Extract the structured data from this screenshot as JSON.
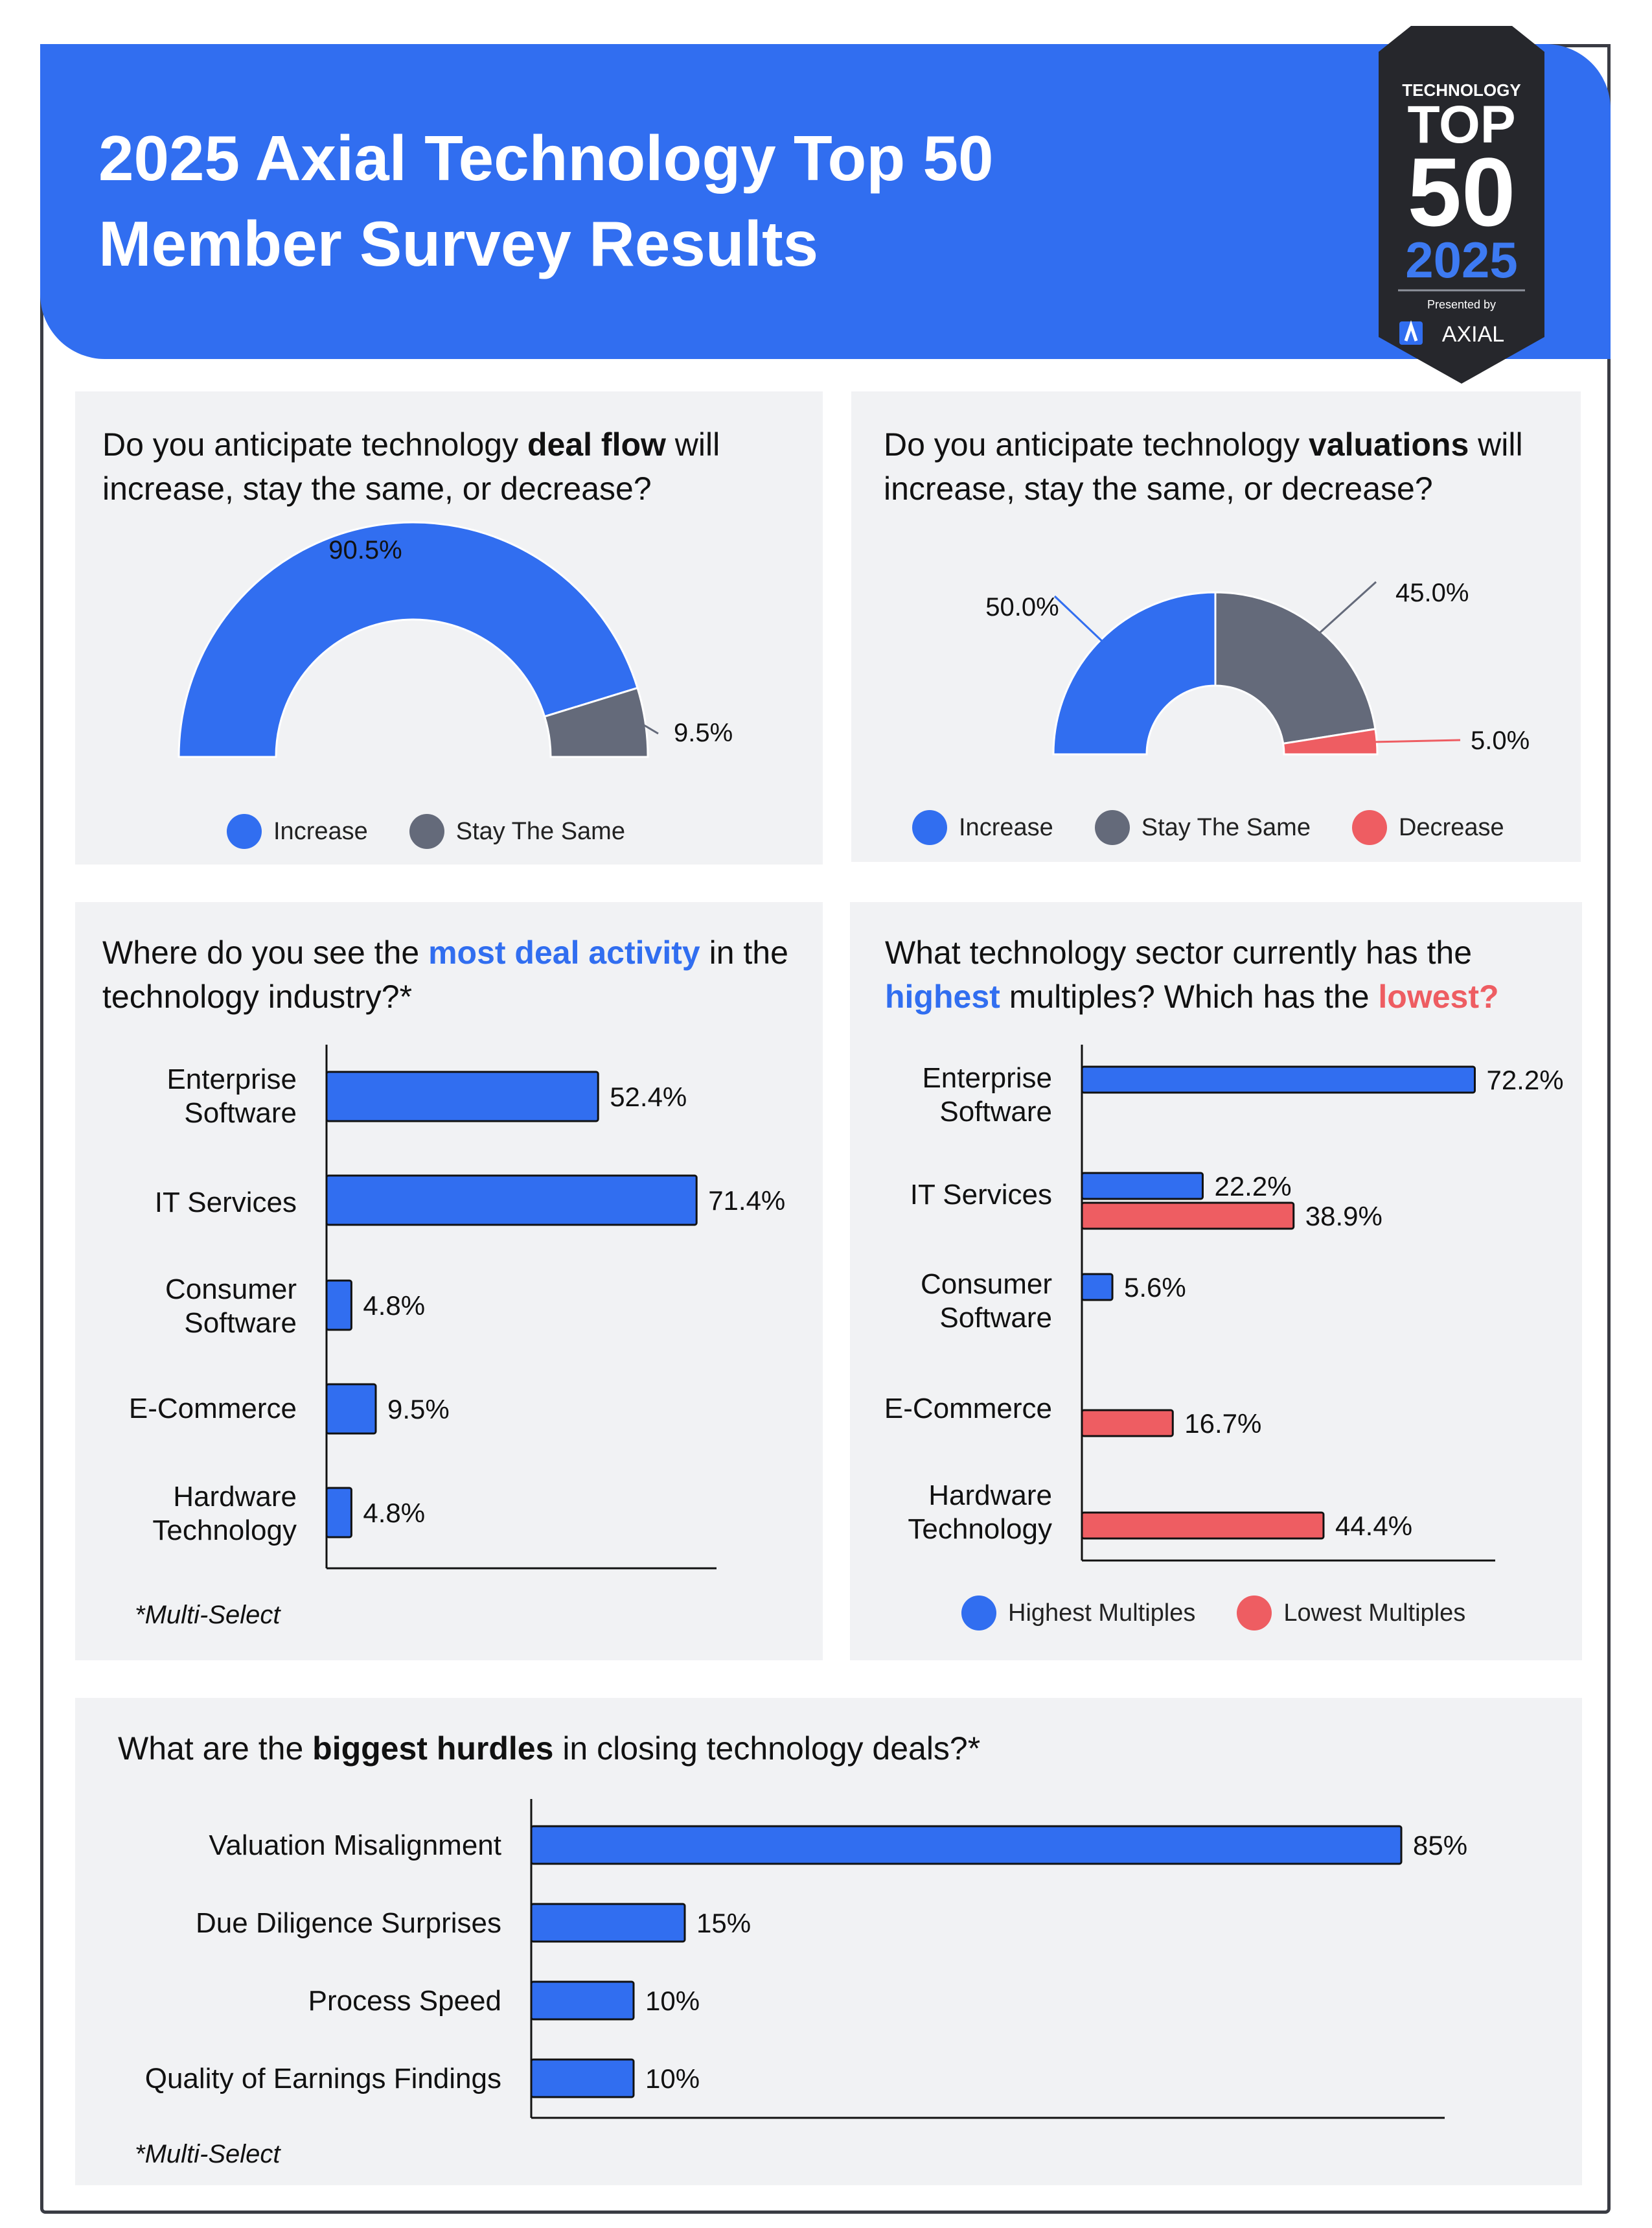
{
  "header": {
    "title_line1": "2025 Axial Technology Top 50",
    "title_line2": "Member Survey Results",
    "badge": {
      "line1": "TECHNOLOGY",
      "line2": "TOP",
      "line3": "50",
      "line4": "2025",
      "presented": "Presented by",
      "brand": "AXIAL"
    }
  },
  "colors": {
    "blue": "#316ef0",
    "gray": "#646a7a",
    "red": "#ee5d62",
    "panel": "#f1f2f4"
  },
  "panel1": {
    "q_pre": "Do you anticipate technology ",
    "q_bold": "deal flow",
    "q_post": " will increase, stay the same, or decrease?",
    "legend": [
      "Increase",
      "Stay The Same"
    ]
  },
  "panel2": {
    "q_pre": "Do you anticipate technology ",
    "q_bold": "valuations",
    "q_post": " will increase, stay the same, or decrease?",
    "legend": [
      "Increase",
      "Stay The Same",
      "Decrease"
    ]
  },
  "panel3": {
    "q_pre": "Where do you see the ",
    "q_bold": "most deal activity",
    "q_post": " in the technology industry?*",
    "note": "*Multi-Select"
  },
  "panel4": {
    "q_pre": "What technology sector currently has the ",
    "q_bold_blue": "highest",
    "q_mid": " multiples? Which has the ",
    "q_bold_red": "lowest?",
    "legend": [
      "Highest Multiples",
      "Lowest Multiples"
    ]
  },
  "panel5": {
    "q_pre": "What are the ",
    "q_bold": "biggest hurdles",
    "q_post": " in closing technology deals?*",
    "note": "*Multi-Select"
  },
  "chart_data": [
    {
      "type": "pie",
      "variant": "half-donut",
      "labels": [
        "Increase",
        "Stay The Same"
      ],
      "values": [
        90.5,
        9.5
      ],
      "display": [
        "90.5%",
        "9.5%"
      ]
    },
    {
      "type": "pie",
      "variant": "half-donut",
      "labels": [
        "Increase",
        "Stay The Same",
        "Decrease"
      ],
      "values": [
        50.0,
        45.0,
        5.0
      ],
      "display": [
        "50.0%",
        "45.0%",
        "5.0%"
      ]
    },
    {
      "type": "bar",
      "orientation": "horizontal",
      "categories": [
        [
          "Enterprise",
          "Software"
        ],
        [
          "IT Services"
        ],
        [
          "Consumer",
          "Software"
        ],
        [
          "E-Commerce"
        ],
        [
          "Hardware",
          "Technology"
        ]
      ],
      "values": [
        52.4,
        71.4,
        4.8,
        9.5,
        4.8
      ],
      "display": [
        "52.4%",
        "71.4%",
        "4.8%",
        "9.5%",
        "4.8%"
      ],
      "xlim": [
        0,
        75
      ]
    },
    {
      "type": "bar",
      "orientation": "horizontal",
      "categories": [
        [
          "Enterprise",
          "Software"
        ],
        [
          "IT Services"
        ],
        [
          "Consumer",
          "Software"
        ],
        [
          "E-Commerce"
        ],
        [
          "Hardware",
          "Technology"
        ]
      ],
      "series": [
        {
          "name": "Highest Multiples",
          "values": [
            72.2,
            22.2,
            5.6,
            null,
            null
          ],
          "display": [
            "72.2%",
            "22.2%",
            "5.6%",
            "",
            ""
          ]
        },
        {
          "name": "Lowest Multiples",
          "values": [
            null,
            38.9,
            null,
            16.7,
            44.4
          ],
          "display": [
            "",
            "38.9%",
            "",
            "16.7%",
            "44.4%"
          ]
        }
      ],
      "xlim": [
        0,
        75
      ]
    },
    {
      "type": "bar",
      "orientation": "horizontal",
      "categories": [
        "Valuation Misalignment",
        "Due Diligence Surprises",
        "Process Speed",
        "Quality of Earnings Findings"
      ],
      "values": [
        85,
        15,
        10,
        10
      ],
      "display": [
        "85%",
        "15%",
        "10%",
        "10%"
      ],
      "xlim": [
        0,
        89.5
      ]
    }
  ]
}
